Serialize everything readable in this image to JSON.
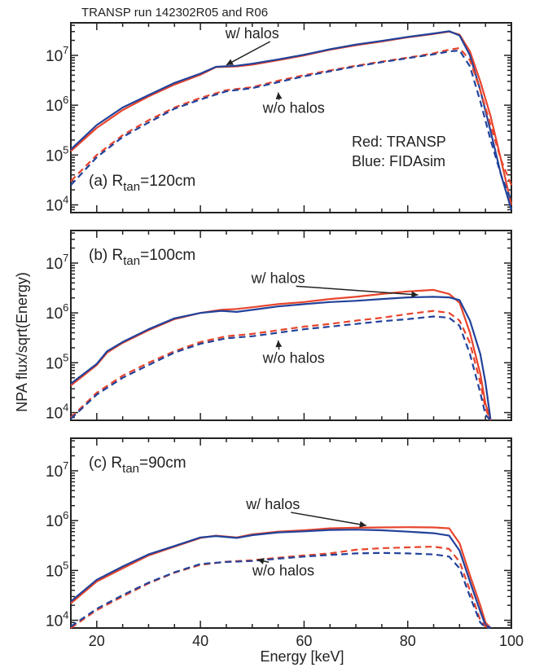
{
  "figure_title": "TRANSP run 142302R05 and R06",
  "xlabel": "Energy [keV]",
  "ylabel": "NPA flux/sqrt(Energy)",
  "colors": {
    "transp": "#e8452c",
    "fidasim": "#22429a",
    "axis": "#222222"
  },
  "legend": {
    "red": "Red: TRANSP",
    "blue": "Blue: FIDAsim"
  },
  "chart_data": [
    {
      "type": "line",
      "panel_label": "(a) R",
      "panel_sub": "tan",
      "panel_suffix": "=120cm",
      "xlim": [
        15,
        100
      ],
      "ylim": [
        7000,
        45000000
      ],
      "yscale": "log",
      "xticks": [
        "20",
        "40",
        "60",
        "80",
        "100"
      ],
      "yticks": [
        {
          "base": "10",
          "exp": "4",
          "value": 10000
        },
        {
          "base": "10",
          "exp": "5",
          "value": 100000
        },
        {
          "base": "10",
          "exp": "6",
          "value": 1000000
        },
        {
          "base": "10",
          "exp": "7",
          "value": 10000000
        }
      ],
      "annotations": [
        {
          "text": "w/ halos",
          "x": 50,
          "y": 22000000,
          "arrow_to": [
            45,
            6400000
          ]
        },
        {
          "text": "w/o halos",
          "x": 58,
          "y": 700000,
          "arrow_to": [
            55,
            1800000
          ]
        }
      ],
      "show_legend": true,
      "series": [
        {
          "name": "Red: TRANSP",
          "halos": "w/",
          "x": [
            15,
            20,
            25,
            30,
            35,
            40,
            43,
            47,
            50,
            55,
            60,
            65,
            70,
            75,
            80,
            85,
            88,
            90,
            92,
            94,
            96,
            98,
            100
          ],
          "y": [
            120000,
            350000,
            800000,
            1500000,
            2600000,
            4100000,
            5800000,
            6000000,
            6500000,
            8000000,
            10000000,
            13000000,
            16000000,
            19000000,
            23000000,
            27000000,
            30000000,
            26000000,
            12000000,
            3000000,
            600000,
            80000,
            10000
          ]
        },
        {
          "name": "Blue: FIDAsim",
          "halos": "w/",
          "x": [
            15,
            20,
            25,
            30,
            35,
            40,
            43,
            47,
            50,
            55,
            60,
            65,
            70,
            75,
            80,
            85,
            88,
            90,
            92,
            94,
            96,
            98,
            100
          ],
          "y": [
            130000,
            400000,
            900000,
            1600000,
            2800000,
            4300000,
            5900000,
            6200000,
            6800000,
            8300000,
            10300000,
            13300000,
            16500000,
            19500000,
            23500000,
            27500000,
            30500000,
            25000000,
            10000000,
            2000000,
            300000,
            40000,
            8000
          ]
        },
        {
          "name": "Red: TRANSP",
          "halos": "w/o",
          "x": [
            15,
            20,
            25,
            30,
            35,
            40,
            45,
            50,
            55,
            60,
            65,
            70,
            75,
            80,
            85,
            88,
            90,
            92,
            94,
            96,
            98,
            100
          ],
          "y": [
            30000,
            100000,
            250000,
            500000,
            900000,
            1400000,
            2000000,
            2300000,
            3100000,
            4000000,
            5000000,
            6200000,
            7500000,
            9000000,
            11000000,
            13000000,
            14000000,
            8000000,
            2000000,
            400000,
            80000,
            25000
          ]
        },
        {
          "name": "Blue: FIDAsim",
          "halos": "w/o",
          "x": [
            15,
            20,
            25,
            30,
            35,
            40,
            45,
            50,
            55,
            60,
            65,
            70,
            75,
            80,
            85,
            88,
            90,
            92,
            94,
            96,
            98,
            100
          ],
          "y": [
            25000,
            90000,
            230000,
            450000,
            850000,
            1300000,
            1900000,
            2200000,
            2900000,
            3800000,
            4800000,
            6000000,
            7300000,
            8800000,
            10500000,
            12000000,
            12500000,
            6000000,
            1200000,
            200000,
            40000,
            12000
          ]
        }
      ]
    },
    {
      "type": "line",
      "panel_label": "(b) R",
      "panel_sub": "tan",
      "panel_suffix": "=100cm",
      "xlim": [
        15,
        100
      ],
      "ylim": [
        7000,
        45000000
      ],
      "yscale": "log",
      "xticks": [
        "20",
        "40",
        "60",
        "80",
        "100"
      ],
      "yticks": [
        {
          "base": "10",
          "exp": "4",
          "value": 10000
        },
        {
          "base": "10",
          "exp": "5",
          "value": 100000
        },
        {
          "base": "10",
          "exp": "6",
          "value": 1000000
        },
        {
          "base": "10",
          "exp": "7",
          "value": 10000000
        }
      ],
      "annotations": [
        {
          "text": "w/ halos",
          "x": 55,
          "y": 4000000,
          "arrow_to": [
            82,
            2300000
          ]
        },
        {
          "text": "w/o halos",
          "x": 58,
          "y": 100000,
          "arrow_to": [
            55,
            280000
          ]
        }
      ],
      "show_legend": false,
      "series": [
        {
          "name": "Red: TRANSP",
          "halos": "w/",
          "x": [
            15,
            20,
            22,
            25,
            30,
            35,
            40,
            44,
            47,
            50,
            55,
            60,
            65,
            70,
            75,
            80,
            85,
            88,
            90,
            92,
            94,
            95,
            96
          ],
          "y": [
            35000,
            90000,
            160000,
            250000,
            450000,
            750000,
            1000000,
            1150000,
            1200000,
            1300000,
            1500000,
            1650000,
            1900000,
            2100000,
            2400000,
            2700000,
            2900000,
            2400000,
            1600000,
            400000,
            60000,
            15000,
            7000
          ]
        },
        {
          "name": "Blue: FIDAsim",
          "halos": "w/",
          "x": [
            15,
            20,
            22,
            25,
            30,
            35,
            40,
            44,
            47,
            50,
            55,
            60,
            65,
            70,
            75,
            80,
            85,
            88,
            90,
            92,
            94,
            95,
            96
          ],
          "y": [
            38000,
            95000,
            170000,
            260000,
            470000,
            780000,
            1000000,
            1100000,
            1050000,
            1150000,
            1350000,
            1500000,
            1650000,
            1750000,
            1900000,
            2050000,
            2100000,
            2050000,
            1800000,
            700000,
            150000,
            40000,
            7000
          ]
        },
        {
          "name": "Red: TRANSP",
          "halos": "w/o",
          "x": [
            15,
            20,
            25,
            30,
            35,
            40,
            45,
            50,
            55,
            60,
            65,
            70,
            75,
            80,
            85,
            88,
            90,
            92,
            94,
            95,
            96
          ],
          "y": [
            8000,
            25000,
            55000,
            100000,
            170000,
            260000,
            340000,
            380000,
            450000,
            530000,
            600000,
            700000,
            800000,
            950000,
            1100000,
            1000000,
            700000,
            250000,
            40000,
            12000,
            7000
          ]
        },
        {
          "name": "Blue: FIDAsim",
          "halos": "w/o",
          "x": [
            15,
            20,
            25,
            30,
            35,
            40,
            45,
            50,
            55,
            60,
            65,
            70,
            75,
            80,
            85,
            88,
            90,
            92,
            94,
            95,
            96
          ],
          "y": [
            7500,
            23000,
            50000,
            90000,
            160000,
            240000,
            310000,
            340000,
            400000,
            470000,
            530000,
            600000,
            680000,
            750000,
            850000,
            800000,
            550000,
            150000,
            25000,
            9000,
            7000
          ]
        }
      ]
    },
    {
      "type": "line",
      "panel_label": "(c) R",
      "panel_sub": "tan",
      "panel_suffix": "=90cm",
      "xlim": [
        15,
        100
      ],
      "ylim": [
        7000,
        45000000
      ],
      "yscale": "log",
      "xticks": [
        "20",
        "40",
        "60",
        "80",
        "100"
      ],
      "yticks": [
        {
          "base": "10",
          "exp": "4",
          "value": 10000
        },
        {
          "base": "10",
          "exp": "5",
          "value": 100000
        },
        {
          "base": "10",
          "exp": "6",
          "value": 1000000
        },
        {
          "base": "10",
          "exp": "7",
          "value": 10000000
        }
      ],
      "annotations": [
        {
          "text": "w/ halos",
          "x": 54,
          "y": 1700000,
          "arrow_to": [
            72,
            800000
          ]
        },
        {
          "text": "w/o halos",
          "x": 56,
          "y": 80000,
          "arrow_to": [
            51,
            165000
          ]
        }
      ],
      "show_legend": false,
      "series": [
        {
          "name": "Red: TRANSP",
          "halos": "w/",
          "x": [
            15,
            20,
            25,
            30,
            35,
            40,
            43,
            47,
            50,
            55,
            60,
            65,
            70,
            75,
            80,
            85,
            88,
            90,
            92,
            94,
            95,
            96
          ],
          "y": [
            22000,
            60000,
            110000,
            200000,
            300000,
            450000,
            500000,
            460000,
            530000,
            600000,
            640000,
            700000,
            720000,
            730000,
            740000,
            730000,
            700000,
            350000,
            80000,
            20000,
            9000,
            7000
          ]
        },
        {
          "name": "Blue: FIDAsim",
          "halos": "w/",
          "x": [
            15,
            20,
            25,
            30,
            35,
            40,
            43,
            47,
            50,
            55,
            60,
            65,
            70,
            75,
            80,
            85,
            88,
            90,
            92,
            94,
            95,
            96
          ],
          "y": [
            24000,
            65000,
            120000,
            210000,
            310000,
            460000,
            490000,
            450000,
            510000,
            580000,
            610000,
            650000,
            660000,
            640000,
            600000,
            560000,
            500000,
            250000,
            60000,
            15000,
            8000,
            7000
          ]
        },
        {
          "name": "Red: TRANSP",
          "halos": "w/o",
          "x": [
            15,
            20,
            25,
            30,
            35,
            40,
            45,
            50,
            55,
            60,
            65,
            70,
            75,
            80,
            85,
            88,
            90,
            92,
            94,
            95,
            96
          ],
          "y": [
            7000,
            16000,
            30000,
            55000,
            90000,
            130000,
            150000,
            160000,
            180000,
            200000,
            220000,
            260000,
            280000,
            290000,
            300000,
            270000,
            150000,
            40000,
            10000,
            7500,
            7000
          ]
        },
        {
          "name": "Blue: FIDAsim",
          "halos": "w/o",
          "x": [
            15,
            20,
            25,
            30,
            35,
            40,
            45,
            50,
            55,
            60,
            65,
            70,
            75,
            80,
            85,
            88,
            90,
            92,
            94,
            95,
            96
          ],
          "y": [
            7500,
            17000,
            32000,
            57000,
            92000,
            135000,
            148000,
            155000,
            172000,
            190000,
            205000,
            220000,
            225000,
            220000,
            210000,
            190000,
            110000,
            30000,
            9000,
            7200,
            7000
          ]
        }
      ]
    }
  ]
}
